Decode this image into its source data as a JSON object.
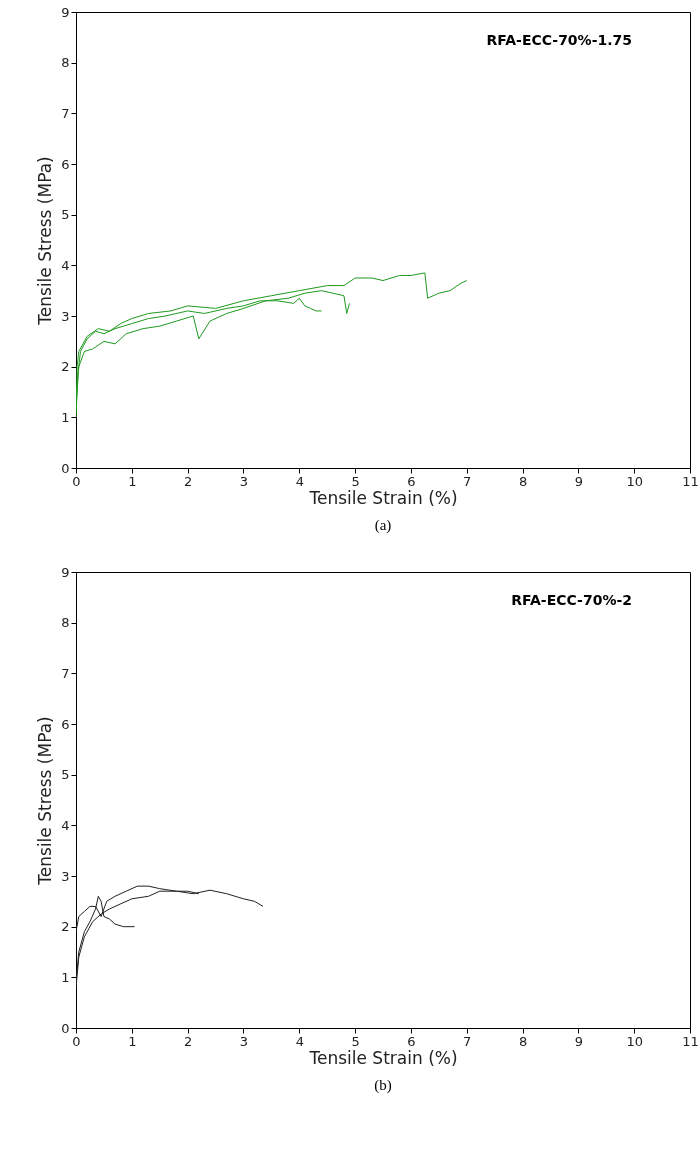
{
  "chart_data": [
    {
      "type": "line",
      "title": "(a)",
      "xlabel": "Tensile Strain (%)",
      "ylabel": "Tensile Stress (MPa)",
      "annotations": [
        "RFA-ECC-70%-1.75"
      ],
      "xlim": [
        0,
        11
      ],
      "xticks": [
        0,
        1,
        2,
        3,
        4,
        5,
        6,
        7,
        8,
        9,
        10,
        11
      ],
      "ylim": [
        0,
        9
      ],
      "yticks": [
        0,
        1,
        2,
        3,
        4,
        5,
        6,
        7,
        8,
        9
      ],
      "grid": false,
      "marker": "none",
      "line_style": "solid",
      "series": [
        {
          "color": "#1e9a1e",
          "x": [
            0,
            0.03,
            0.08,
            0.2,
            0.35,
            0.5,
            0.7,
            1.0,
            1.3,
            1.6,
            2.0,
            2.3,
            2.7,
            3.0,
            3.3,
            3.6,
            3.9,
            4.0,
            4.1,
            4.2,
            4.3,
            4.4
          ],
          "values": [
            1.0,
            1.8,
            2.3,
            2.55,
            2.7,
            2.65,
            2.75,
            2.85,
            2.95,
            3.0,
            3.1,
            3.05,
            3.15,
            3.2,
            3.3,
            3.3,
            3.25,
            3.35,
            3.2,
            3.15,
            3.1,
            3.1
          ]
        },
        {
          "color": "#1e9a1e",
          "x": [
            0,
            0.05,
            0.15,
            0.3,
            0.5,
            0.7,
            0.9,
            1.2,
            1.5,
            1.8,
            2.1,
            2.2,
            2.4,
            2.7,
            3.0,
            3.4,
            3.8,
            4.1,
            4.4,
            4.6,
            4.8,
            4.85,
            4.9
          ],
          "values": [
            1.2,
            2.0,
            2.3,
            2.35,
            2.5,
            2.45,
            2.65,
            2.75,
            2.8,
            2.9,
            3.0,
            2.55,
            2.9,
            3.05,
            3.15,
            3.3,
            3.35,
            3.45,
            3.5,
            3.45,
            3.4,
            3.05,
            3.25
          ]
        },
        {
          "color": "#1e9a1e",
          "x": [
            0,
            0.02,
            0.05,
            0.2,
            0.4,
            0.6,
            0.8,
            1.0,
            1.3,
            1.7,
            2.0,
            2.5,
            3.0,
            3.5,
            4.0,
            4.5,
            4.8,
            5.0,
            5.3,
            5.5,
            5.8,
            6.0,
            6.25,
            6.3,
            6.5,
            6.7,
            6.9,
            7.0
          ],
          "values": [
            1.1,
            2.0,
            2.3,
            2.6,
            2.75,
            2.7,
            2.85,
            2.95,
            3.05,
            3.1,
            3.2,
            3.15,
            3.3,
            3.4,
            3.5,
            3.6,
            3.6,
            3.75,
            3.75,
            3.7,
            3.8,
            3.8,
            3.85,
            3.35,
            3.45,
            3.5,
            3.65,
            3.7
          ]
        }
      ]
    },
    {
      "type": "line",
      "title": "(b)",
      "xlabel": "Tensile Strain (%)",
      "ylabel": "Tensile Stress (MPa)",
      "annotations": [
        "RFA-ECC-70%-2"
      ],
      "xlim": [
        0,
        11
      ],
      "xticks": [
        0,
        1,
        2,
        3,
        4,
        5,
        6,
        7,
        8,
        9,
        10,
        11
      ],
      "ylim": [
        0,
        9
      ],
      "yticks": [
        0,
        1,
        2,
        3,
        4,
        5,
        6,
        7,
        8,
        9
      ],
      "grid": false,
      "marker": "none",
      "line_style": "solid",
      "series": [
        {
          "color": "#222222",
          "x": [
            0,
            0.05,
            0.15,
            0.25,
            0.35,
            0.4,
            0.45,
            0.5,
            0.6,
            0.7,
            0.85,
            1.05
          ],
          "values": [
            0.9,
            1.5,
            1.9,
            2.1,
            2.35,
            2.6,
            2.5,
            2.2,
            2.15,
            2.05,
            2.0,
            2.0
          ]
        },
        {
          "color": "#222222",
          "x": [
            0,
            0.05,
            0.15,
            0.25,
            0.35,
            0.45,
            0.55,
            0.7,
            0.9,
            1.1,
            1.3,
            1.5,
            1.8,
            2.1,
            2.4,
            2.7,
            3.0,
            3.2,
            3.35
          ],
          "values": [
            1.9,
            2.2,
            2.3,
            2.4,
            2.4,
            2.2,
            2.5,
            2.6,
            2.7,
            2.8,
            2.8,
            2.75,
            2.7,
            2.65,
            2.72,
            2.65,
            2.55,
            2.5,
            2.4
          ]
        },
        {
          "color": "#222222",
          "x": [
            0,
            0.05,
            0.15,
            0.3,
            0.45,
            0.6,
            0.8,
            1.0,
            1.3,
            1.5,
            1.8,
            2.0,
            2.2
          ],
          "values": [
            0.8,
            1.4,
            1.8,
            2.1,
            2.25,
            2.35,
            2.45,
            2.55,
            2.6,
            2.7,
            2.7,
            2.7,
            2.65
          ]
        }
      ]
    }
  ]
}
